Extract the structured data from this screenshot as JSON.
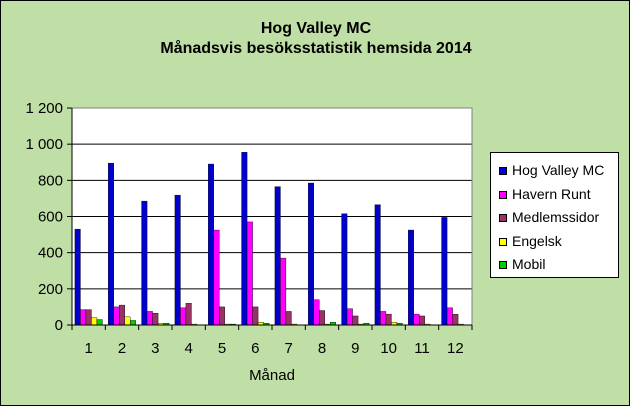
{
  "chart_data": {
    "type": "bar",
    "title": "Hog Valley MC",
    "subtitle": "Månadsvis besöksstatistik hemsida 2014",
    "xlabel": "Månad",
    "ylabel": "",
    "ylim": [
      0,
      1200
    ],
    "yticks": [
      "0",
      "200",
      "400",
      "600",
      "800",
      "1 000",
      "1 200"
    ],
    "grid": true,
    "legend_position": "right",
    "categories": [
      "1",
      "2",
      "3",
      "4",
      "5",
      "6",
      "7",
      "8",
      "9",
      "10",
      "11",
      "12"
    ],
    "series": [
      {
        "name": "Hog Valley MC",
        "color": "#0000cc",
        "values": [
          530,
          895,
          685,
          718,
          890,
          955,
          765,
          785,
          615,
          665,
          525,
          595
        ]
      },
      {
        "name": "Havern Runt",
        "color": "#ff00ff",
        "values": [
          85,
          100,
          75,
          95,
          525,
          570,
          370,
          140,
          90,
          75,
          60,
          95
        ]
      },
      {
        "name": "Medlemssidor",
        "color": "#993366",
        "values": [
          85,
          110,
          65,
          120,
          100,
          100,
          75,
          80,
          50,
          60,
          50,
          60
        ]
      },
      {
        "name": "Engelsk",
        "color": "#ffff00",
        "values": [
          40,
          45,
          10,
          5,
          5,
          15,
          5,
          5,
          5,
          15,
          5,
          5
        ]
      },
      {
        "name": "Mobil",
        "color": "#00cc00",
        "values": [
          30,
          25,
          10,
          0,
          5,
          10,
          0,
          15,
          10,
          10,
          0,
          0
        ]
      }
    ]
  }
}
